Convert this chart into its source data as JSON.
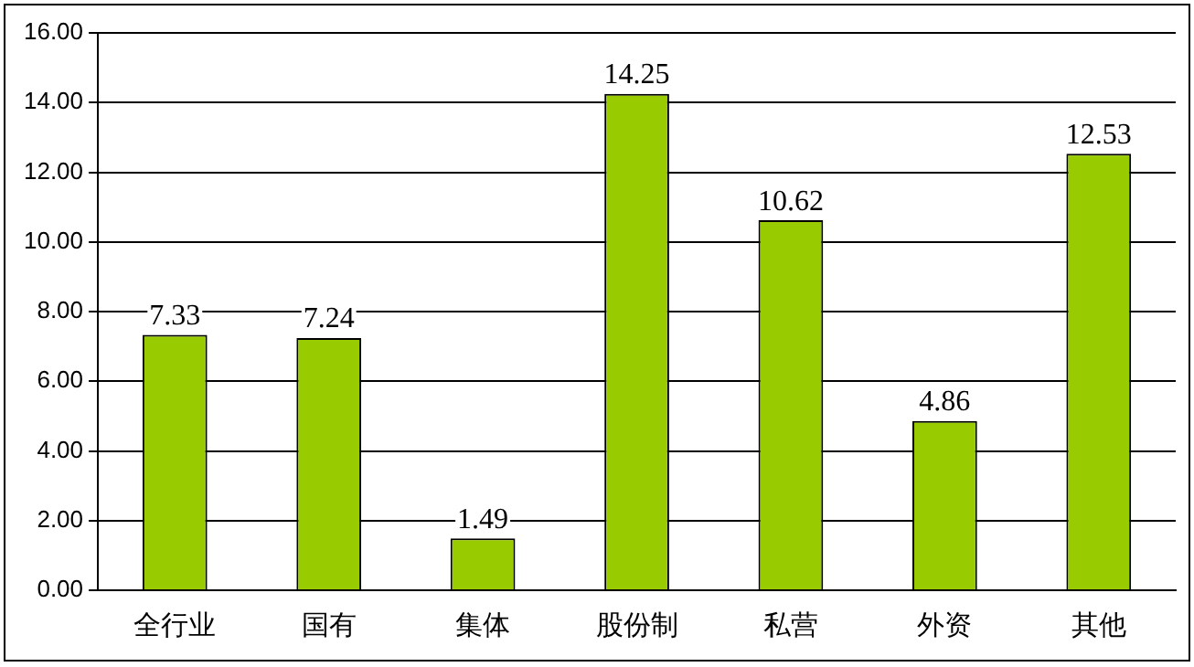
{
  "chart_data": {
    "type": "bar",
    "categories": [
      "全行业",
      "国有",
      "集体",
      "股份制",
      "私营",
      "外资",
      "其他"
    ],
    "values": [
      7.33,
      7.24,
      1.49,
      14.25,
      10.62,
      4.86,
      12.53
    ],
    "color": "#99cc00",
    "ylim": [
      0,
      16
    ],
    "yticks": [
      {
        "value": 0,
        "label": "0.00"
      },
      {
        "value": 2,
        "label": "2.00"
      },
      {
        "value": 4,
        "label": "4.00"
      },
      {
        "value": 6,
        "label": "6.00"
      },
      {
        "value": 8,
        "label": "8.00"
      },
      {
        "value": 10,
        "label": "10.00"
      },
      {
        "value": 12,
        "label": "12.00"
      },
      {
        "value": 14,
        "label": "14.00"
      },
      {
        "value": 16,
        "label": "16.00"
      }
    ],
    "grid": "y",
    "data_labels": true
  }
}
